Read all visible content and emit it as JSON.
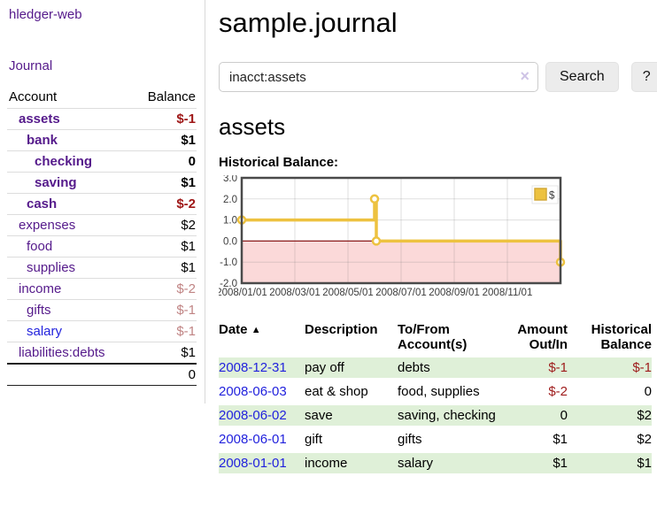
{
  "app": {
    "title": "hledger-web"
  },
  "nav": {
    "journal": "Journal"
  },
  "sidebar": {
    "columns": {
      "account": "Account",
      "balance": "Balance"
    },
    "accounts": [
      {
        "name": "assets",
        "depth": 1,
        "bold": true,
        "balance": "$-1",
        "balance_tone": "neg-strong"
      },
      {
        "name": "bank",
        "depth": 2,
        "bold": true,
        "balance": "$1",
        "balance_tone": "pos"
      },
      {
        "name": "checking",
        "depth": 3,
        "bold": true,
        "balance": "0",
        "balance_tone": "pos"
      },
      {
        "name": "saving",
        "depth": 3,
        "bold": true,
        "balance": "$1",
        "balance_tone": "pos"
      },
      {
        "name": "cash",
        "depth": 2,
        "bold": true,
        "balance": "$-2",
        "balance_tone": "neg-strong"
      },
      {
        "name": "expenses",
        "depth": 1,
        "bold": false,
        "balance": "$2",
        "balance_tone": "pos"
      },
      {
        "name": "food",
        "depth": 2,
        "bold": false,
        "balance": "$1",
        "balance_tone": "pos"
      },
      {
        "name": "supplies",
        "depth": 2,
        "bold": false,
        "balance": "$1",
        "balance_tone": "pos"
      },
      {
        "name": "income",
        "depth": 1,
        "bold": false,
        "balance": "$-2",
        "balance_tone": "neg-soft"
      },
      {
        "name": "gifts",
        "depth": 2,
        "bold": false,
        "balance": "$-1",
        "balance_tone": "neg-soft"
      },
      {
        "name": "salary",
        "depth": 2,
        "bold": false,
        "balance": "$-1",
        "balance_tone": "neg-soft",
        "link_tone": "blue"
      },
      {
        "name": "liabilities:debts",
        "depth": 1,
        "bold": false,
        "balance": "$1",
        "balance_tone": "pos"
      }
    ],
    "total": "0"
  },
  "header": {
    "title": "sample.journal"
  },
  "search": {
    "value": "inacct:assets",
    "clear_icon": "×",
    "button": "Search",
    "help_button": "?"
  },
  "account_page": {
    "heading": "assets",
    "chart_label": "Historical Balance:"
  },
  "chart_data": {
    "type": "line",
    "title": "Historical Balance:",
    "legend": [
      {
        "label": "$",
        "color": "#edc240"
      }
    ],
    "legend_position": "top-right",
    "series": [
      {
        "name": "$",
        "color": "#edc240",
        "step": true,
        "points": [
          [
            "2008-01-01",
            1.0
          ],
          [
            "2008-06-01",
            2.0
          ],
          [
            "2008-06-03",
            0.0
          ],
          [
            "2008-12-31",
            -1.0
          ]
        ]
      }
    ],
    "ylim": [
      -2.0,
      3.0
    ],
    "yticks": [
      3.0,
      2.0,
      1.0,
      0.0,
      -1.0,
      -2.0
    ],
    "xtick_labels": [
      "2008/01/01",
      "2008/03/01",
      "2008/05/01",
      "2008/07/01",
      "2008/09/01",
      "2008/11/01"
    ],
    "x_range_months": [
      "2008-01",
      "2009-01"
    ],
    "grid": true,
    "negative_region_color": "#fbd9d9",
    "zero_line_color": "#8b1c1c",
    "border_color": "#4a4a4a"
  },
  "register": {
    "columns": [
      "Date",
      "Description",
      "To/From Account(s)",
      "Amount Out/In",
      "Historical Balance"
    ],
    "sort_icon": "▲",
    "rows": [
      {
        "date": "2008-12-31",
        "description": "pay off",
        "accounts": "debts",
        "amount": "$-1",
        "amount_negative": true,
        "balance": "$-1",
        "balance_negative": true,
        "highlight": true
      },
      {
        "date": "2008-06-03",
        "description": "eat & shop",
        "accounts": "food, supplies",
        "amount": "$-2",
        "amount_negative": true,
        "balance": "0",
        "balance_negative": false,
        "highlight": false
      },
      {
        "date": "2008-06-02",
        "description": "save",
        "accounts": "saving, checking",
        "amount": "0",
        "amount_negative": false,
        "balance": "$2",
        "balance_negative": false,
        "highlight": true
      },
      {
        "date": "2008-06-01",
        "description": "gift",
        "accounts": "gifts",
        "amount": "$1",
        "amount_negative": false,
        "balance": "$2",
        "balance_negative": false,
        "highlight": false
      },
      {
        "date": "2008-01-01",
        "description": "income",
        "accounts": "salary",
        "amount": "$1",
        "amount_negative": false,
        "balance": "$1",
        "balance_negative": false,
        "highlight": true
      }
    ]
  },
  "colors": {
    "link_purple": "#551a8b",
    "link_blue": "#2222dd",
    "negative_strong": "#9e1616",
    "negative_soft": "#c08484",
    "row_highlight_green": "#dff0d8",
    "chart_line_gold": "#edc240"
  }
}
